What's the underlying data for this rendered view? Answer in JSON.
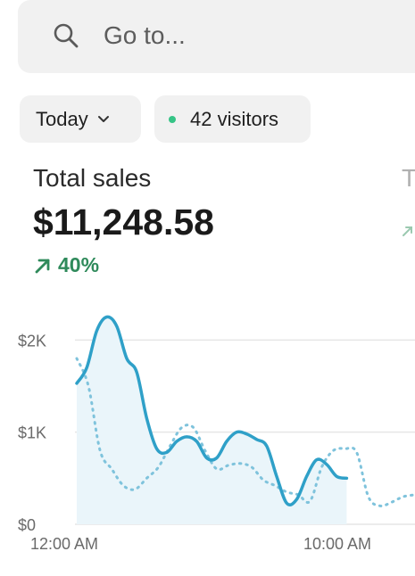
{
  "search": {
    "placeholder": "Go to..."
  },
  "filters": {
    "date_label": "Today",
    "visitors_label": "42 visitors"
  },
  "metric": {
    "label": "Total sales",
    "value": "$11,248.58",
    "change": "40%"
  },
  "next_metric": {
    "label_partial": "T"
  },
  "colors": {
    "accent": "#2fa0c8",
    "positive": "#2f8a5b",
    "live_dot": "#36c486"
  },
  "icons": {
    "search": "search-icon",
    "chevron": "chevron-down-icon",
    "change": "arrow-up-right-icon",
    "live": "status-dot-icon"
  },
  "chart_data": {
    "type": "line",
    "xlabel": "",
    "ylabel": "",
    "x_ticks": [
      "12:00 AM",
      "10:00 AM"
    ],
    "y_ticks": [
      "$0",
      "$1K",
      "$2K"
    ],
    "ylim": [
      0,
      2400
    ],
    "grid": true,
    "series": [
      {
        "style": "solid",
        "values": [
          1530,
          1700,
          2100,
          2250,
          2150,
          1800,
          1650,
          1150,
          820,
          780,
          900,
          950,
          900,
          720,
          720,
          900,
          1000,
          980,
          920,
          850,
          520,
          230,
          270,
          520,
          700,
          650,
          520,
          500
        ]
      },
      {
        "style": "dotted",
        "values": [
          1800,
          1500,
          800,
          600,
          420,
          380,
          500,
          620,
          850,
          1050,
          1050,
          800,
          600,
          640,
          660,
          620,
          480,
          420,
          350,
          320,
          250,
          620,
          800,
          820,
          780,
          300,
          200,
          240,
          300,
          320
        ]
      }
    ]
  }
}
